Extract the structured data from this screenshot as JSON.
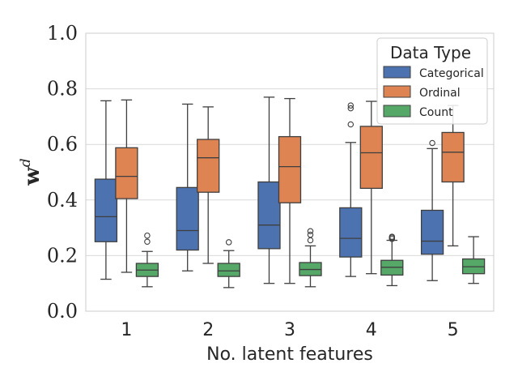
{
  "chart_data": {
    "type": "box",
    "xlabel": "No. latent features",
    "ylabel": "w",
    "ylabel_superscript": "d",
    "ylim": [
      0.0,
      1.0
    ],
    "yticks": [
      "0.0",
      "0.2",
      "0.4",
      "0.6",
      "0.8",
      "1.0"
    ],
    "categories": [
      "1",
      "2",
      "3",
      "4",
      "5"
    ],
    "grid": "horizontal",
    "legend": {
      "title": "Data Type",
      "position": "top-right"
    },
    "series": [
      {
        "name": "Categorical",
        "color": "#4c72b0",
        "boxes": [
          {
            "whislo": 0.115,
            "q1": 0.25,
            "med": 0.34,
            "q3": 0.475,
            "whishi": 0.757,
            "fliers": []
          },
          {
            "whislo": 0.145,
            "q1": 0.22,
            "med": 0.29,
            "q3": 0.445,
            "whishi": 0.745,
            "fliers": []
          },
          {
            "whislo": 0.1,
            "q1": 0.225,
            "med": 0.31,
            "q3": 0.465,
            "whishi": 0.77,
            "fliers": []
          },
          {
            "whislo": 0.125,
            "q1": 0.195,
            "med": 0.262,
            "q3": 0.372,
            "whishi": 0.607,
            "fliers": [
              0.672,
              0.73,
              0.74
            ]
          },
          {
            "whislo": 0.11,
            "q1": 0.205,
            "med": 0.252,
            "q3": 0.363,
            "whishi": 0.585,
            "fliers": [
              0.605
            ]
          }
        ]
      },
      {
        "name": "Ordinal",
        "color": "#dd8452",
        "boxes": [
          {
            "whislo": 0.14,
            "q1": 0.405,
            "med": 0.485,
            "q3": 0.588,
            "whishi": 0.76,
            "fliers": []
          },
          {
            "whislo": 0.172,
            "q1": 0.428,
            "med": 0.552,
            "q3": 0.618,
            "whishi": 0.735,
            "fliers": []
          },
          {
            "whislo": 0.1,
            "q1": 0.39,
            "med": 0.52,
            "q3": 0.628,
            "whishi": 0.765,
            "fliers": []
          },
          {
            "whislo": 0.135,
            "q1": 0.442,
            "med": 0.57,
            "q3": 0.665,
            "whishi": 0.755,
            "fliers": []
          },
          {
            "whislo": 0.235,
            "q1": 0.465,
            "med": 0.572,
            "q3": 0.643,
            "whishi": 0.74,
            "fliers": []
          }
        ]
      },
      {
        "name": "Count",
        "color": "#55a868",
        "boxes": [
          {
            "whislo": 0.088,
            "q1": 0.125,
            "med": 0.148,
            "q3": 0.172,
            "whishi": 0.215,
            "fliers": [
              0.25,
              0.272
            ]
          },
          {
            "whislo": 0.085,
            "q1": 0.125,
            "med": 0.145,
            "q3": 0.172,
            "whishi": 0.218,
            "fliers": [
              0.248
            ]
          },
          {
            "whislo": 0.088,
            "q1": 0.128,
            "med": 0.15,
            "q3": 0.175,
            "whishi": 0.235,
            "fliers": [
              0.255,
              0.275,
              0.288
            ]
          },
          {
            "whislo": 0.092,
            "q1": 0.13,
            "med": 0.158,
            "q3": 0.183,
            "whishi": 0.255,
            "fliers": [
              0.26,
              0.265,
              0.268
            ]
          },
          {
            "whislo": 0.1,
            "q1": 0.135,
            "med": 0.16,
            "q3": 0.188,
            "whishi": 0.268,
            "fliers": []
          }
        ]
      }
    ]
  }
}
